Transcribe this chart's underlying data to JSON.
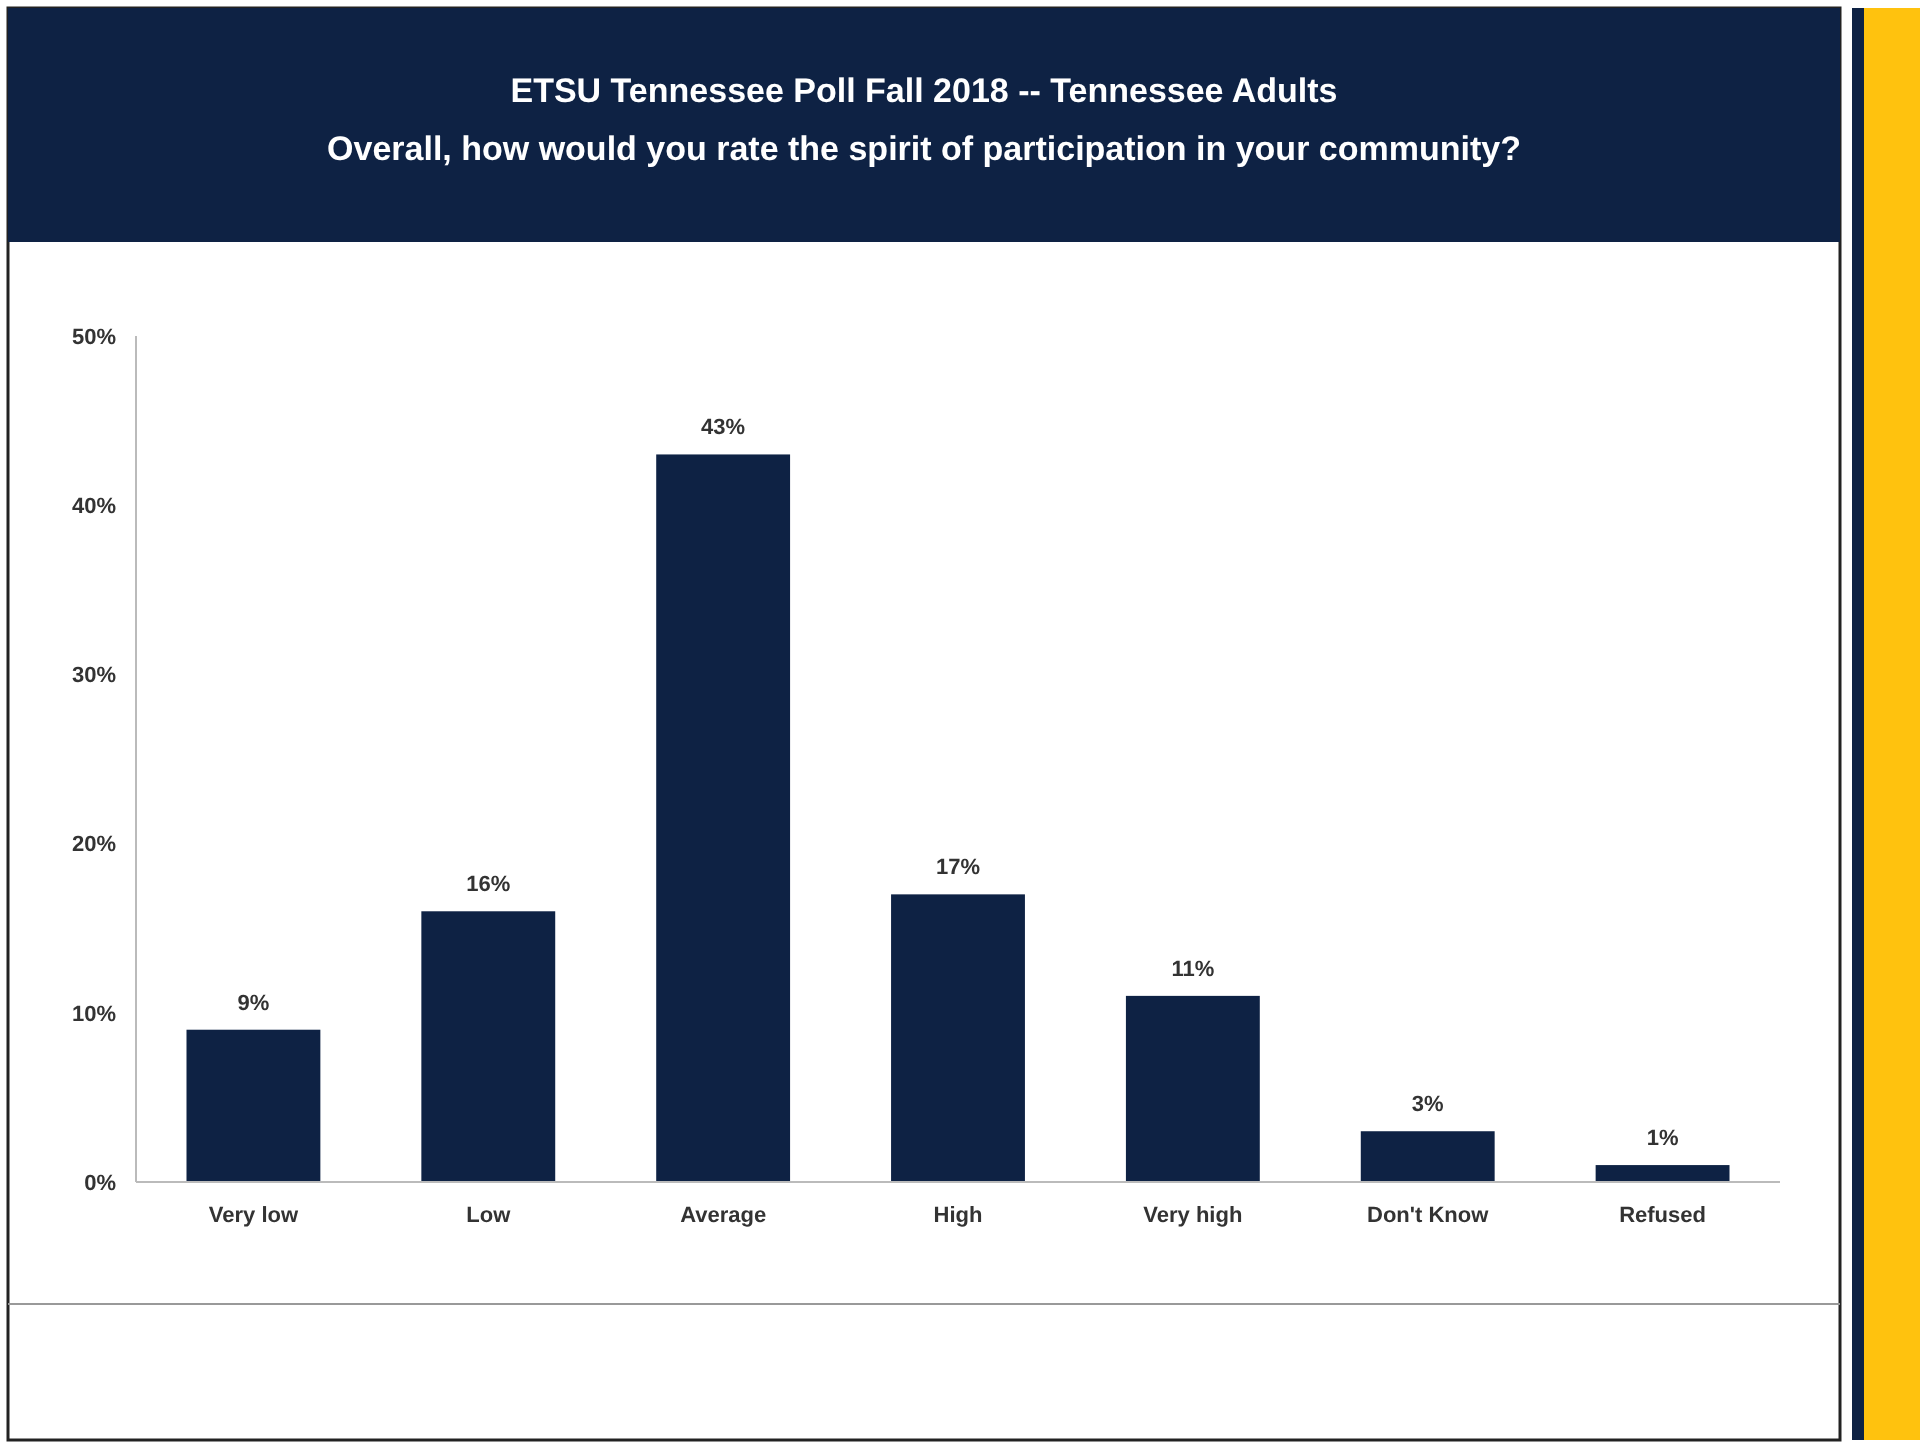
{
  "chart_data": {
    "type": "bar",
    "title": "ETSU Tennessee Poll Fall 2018 -- Tennessee Adults",
    "subtitle": "Overall, how would you rate the spirit of participation in your community?",
    "categories": [
      "Very low",
      "Low",
      "Average",
      "High",
      "Very high",
      "Don't Know",
      "Refused"
    ],
    "values": [
      9,
      16,
      43,
      17,
      11,
      3,
      1
    ],
    "value_labels": [
      "9%",
      "16%",
      "43%",
      "17%",
      "11%",
      "3%",
      "1%"
    ],
    "color": "#0e2244",
    "ylim": [
      0,
      50
    ],
    "yticks": [
      {
        "value": 0,
        "label": "0%"
      },
      {
        "value": 10,
        "label": "10%"
      },
      {
        "value": 20,
        "label": "20%"
      },
      {
        "value": 30,
        "label": "30%"
      },
      {
        "value": 40,
        "label": "40%"
      },
      {
        "value": 50,
        "label": "50%"
      }
    ],
    "grid": false
  }
}
